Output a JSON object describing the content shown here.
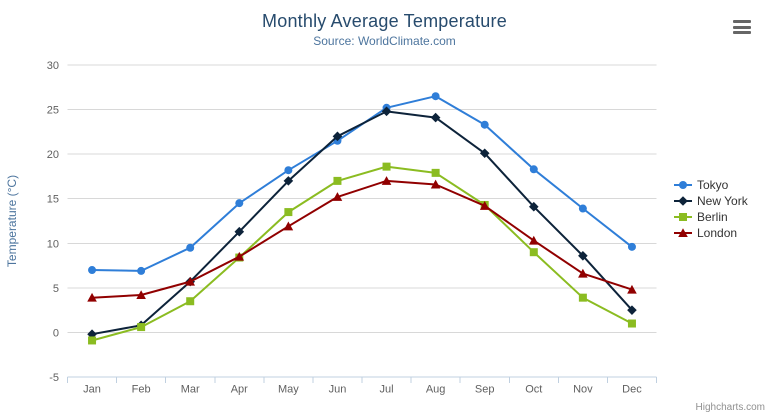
{
  "header": {
    "title": "Monthly Average Temperature",
    "subtitle": "Source: WorldClimate.com"
  },
  "controls": {
    "export_menu_icon": "hamburger-icon"
  },
  "footer": {
    "credit": "Highcharts.com"
  },
  "chart_data": {
    "type": "line",
    "title": "Monthly Average Temperature",
    "subtitle": "Source: WorldClimate.com",
    "xlabel": "",
    "ylabel": "Temperature (°C)",
    "ylim": [
      -5,
      30
    ],
    "ytick_interval": 5,
    "grid": true,
    "legend_position": "right",
    "categories": [
      "Jan",
      "Feb",
      "Mar",
      "Apr",
      "May",
      "Jun",
      "Jul",
      "Aug",
      "Sep",
      "Oct",
      "Nov",
      "Dec"
    ],
    "series": [
      {
        "name": "Tokyo",
        "color": "#2f7ed8",
        "marker": "circle",
        "values": [
          7.0,
          6.9,
          9.5,
          14.5,
          18.2,
          21.5,
          25.2,
          26.5,
          23.3,
          18.3,
          13.9,
          9.6
        ]
      },
      {
        "name": "New York",
        "color": "#0d233a",
        "marker": "diamond",
        "values": [
          -0.2,
          0.8,
          5.7,
          11.3,
          17.0,
          22.0,
          24.8,
          24.1,
          20.1,
          14.1,
          8.6,
          2.5
        ]
      },
      {
        "name": "Berlin",
        "color": "#8bbc21",
        "marker": "square",
        "values": [
          -0.9,
          0.6,
          3.5,
          8.4,
          13.5,
          17.0,
          18.6,
          17.9,
          14.3,
          9.0,
          3.9,
          1.0
        ]
      },
      {
        "name": "London",
        "color": "#910000",
        "marker": "triangle",
        "values": [
          3.9,
          4.2,
          5.7,
          8.5,
          11.9,
          15.2,
          17.0,
          16.6,
          14.2,
          10.3,
          6.6,
          4.8
        ]
      }
    ],
    "axis_colors": {
      "grid_line": "#d8d8d8",
      "axis_line": "#c0d0e0",
      "tick": "#c0d0e0"
    }
  }
}
